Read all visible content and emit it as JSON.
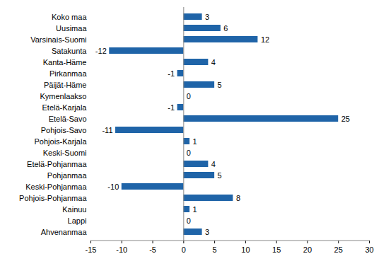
{
  "chart_data": {
    "type": "bar",
    "orientation": "horizontal",
    "categories": [
      "Koko maa",
      "Uusimaa",
      "Varsinais-Suomi",
      "Satakunta",
      "Kanta-Häme",
      "Pirkanmaa",
      "Päijät-Häme",
      "Kymenlaakso",
      "Etelä-Karjala",
      "Etelä-Savo",
      "Pohjois-Savo",
      "Pohjois-Karjala",
      "Keski-Suomi",
      "Etelä-Pohjanmaa",
      "Pohjanmaa",
      "Keski-Pohjanmaa",
      "Pohjois-Pohjanmaa",
      "Kainuu",
      "Lappi",
      "Ahvenanmaa"
    ],
    "values": [
      3,
      6,
      12,
      -12,
      4,
      -1,
      5,
      0,
      -1,
      25,
      -11,
      1,
      0,
      4,
      5,
      -10,
      8,
      1,
      0,
      3
    ],
    "color": "#1f64a8",
    "xlim": [
      -15,
      30
    ],
    "xticks": [
      -15,
      -10,
      -5,
      0,
      5,
      10,
      15,
      20,
      25,
      30
    ],
    "grid": false,
    "data_labels": true
  }
}
